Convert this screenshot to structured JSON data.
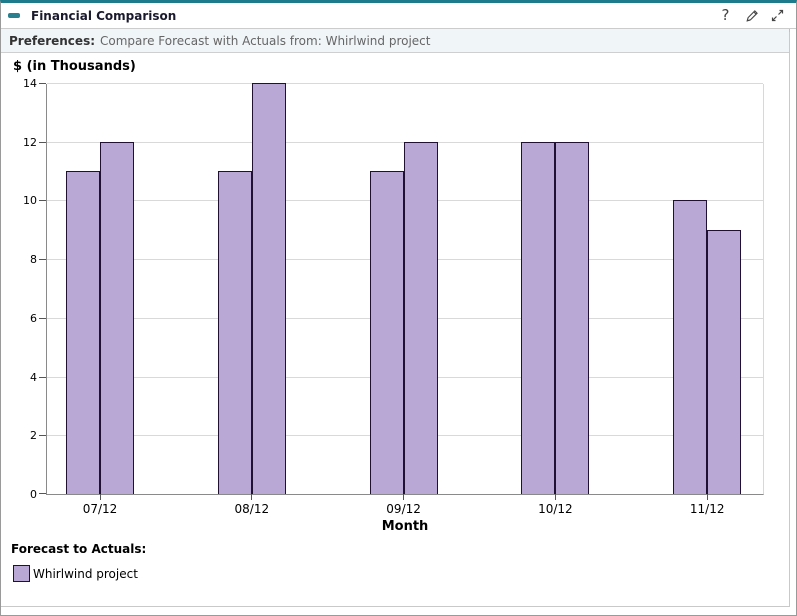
{
  "widget": {
    "title": "Financial Comparison",
    "accent_color": "#1e7b8c",
    "icons": {
      "collapse": "minus-icon",
      "help_glyph": "?",
      "edit": "pencil-icon",
      "expand": "diagonal-resize-icon"
    }
  },
  "preferences": {
    "label": "Preferences:",
    "value": "Compare Forecast with Actuals from: Whirlwind project"
  },
  "chart_data": {
    "type": "bar",
    "title": "",
    "ylabel": "$ (in Thousands)",
    "xlabel": "Month",
    "categories": [
      "07/12",
      "08/12",
      "09/12",
      "10/12",
      "11/12"
    ],
    "series": [
      {
        "name": "Forecast",
        "values": [
          11,
          11,
          11,
          12,
          10
        ]
      },
      {
        "name": "Actuals",
        "values": [
          12,
          14,
          12,
          12,
          9
        ]
      }
    ],
    "ylim": [
      0,
      14
    ],
    "ytick_step": 2,
    "grid": true,
    "bar_color": "#b9a8d6",
    "bar_border_color": "#201033",
    "gridline_color": "#d9d9d9",
    "legend_position": "bottom-left"
  },
  "legend": {
    "heading": "Forecast to Actuals:",
    "items": [
      {
        "label": "Whirlwind project",
        "color": "#b9a8d6"
      }
    ]
  }
}
